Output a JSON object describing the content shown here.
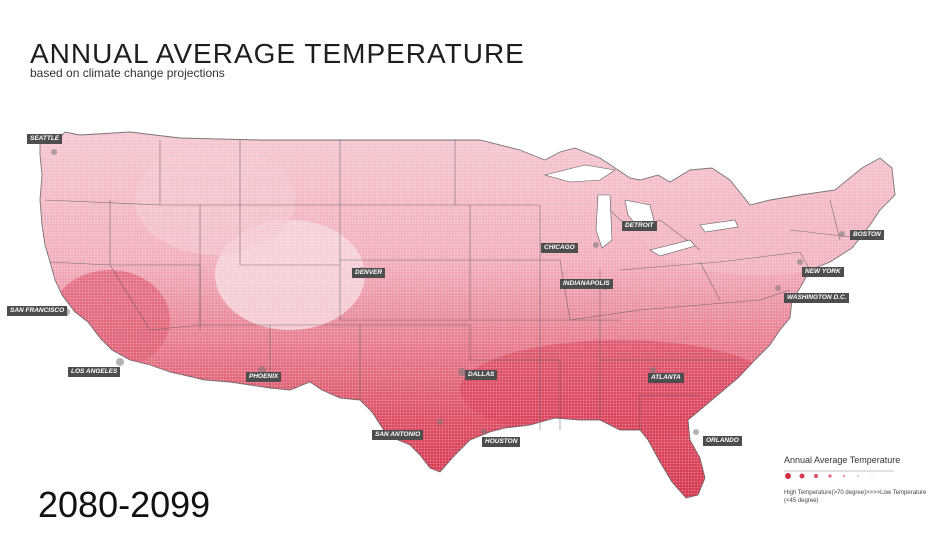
{
  "header": {
    "title": "ANNUAL AVERAGE TEMPERATURE",
    "subtitle": "based on climate change projections"
  },
  "period": "2080-2099",
  "legend": {
    "title": "Annual Average Temperature",
    "high_label": "High Temperature(>70 degree)>>>>Low Temperature",
    "low_label": "(<45 degree)"
  },
  "cities": [
    {
      "id": "seattle",
      "label": "SEATTLE"
    },
    {
      "id": "san-francisco",
      "label": "SAN FRANCISCO"
    },
    {
      "id": "los-angeles",
      "label": "LOS ANGELES"
    },
    {
      "id": "phoenix",
      "label": "PHOENIX"
    },
    {
      "id": "denver",
      "label": "DENVER"
    },
    {
      "id": "dallas",
      "label": "DALLAS"
    },
    {
      "id": "san-antonio",
      "label": "SAN ANTONIO"
    },
    {
      "id": "houston",
      "label": "HOUSTON"
    },
    {
      "id": "chicago",
      "label": "CHICAGO"
    },
    {
      "id": "detroit",
      "label": "DETROIT"
    },
    {
      "id": "indianapolis",
      "label": "INDIANAPOLIS"
    },
    {
      "id": "atlanta",
      "label": "ATLANTA"
    },
    {
      "id": "orlando",
      "label": "ORLANDO"
    },
    {
      "id": "washington-dc",
      "label": "WASHINGTON D.C."
    },
    {
      "id": "new-york",
      "label": "NEW YORK"
    },
    {
      "id": "boston",
      "label": "BOSTON"
    }
  ],
  "colors": {
    "hot": "#d62e48",
    "warm": "#e66a7c",
    "mild": "#f1a9b5",
    "cool": "#f8d3da",
    "borders": "#555555",
    "label_bg": "#4d4d4d"
  }
}
